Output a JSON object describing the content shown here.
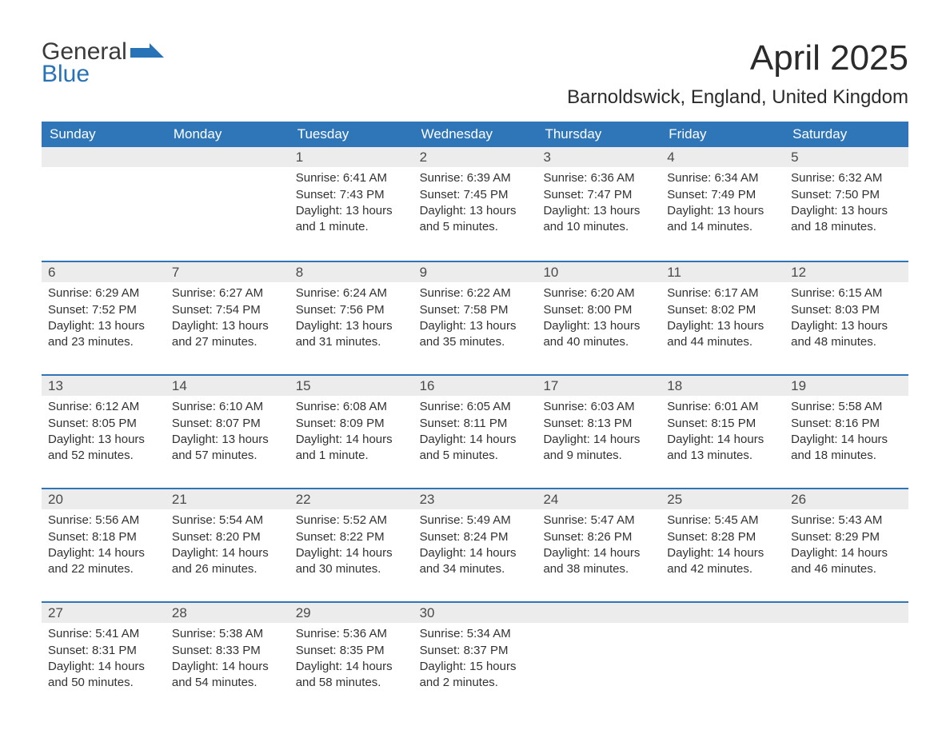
{
  "logo": {
    "word1": "General",
    "word2": "Blue"
  },
  "title": "April 2025",
  "location": "Barnoldswick, England, United Kingdom",
  "colors": {
    "header_bg": "#2f76b9",
    "header_text": "#ffffff",
    "daynum_bg": "#ececec",
    "text": "#323232",
    "rule": "#2f76b9",
    "logo_blue": "#2872b8"
  },
  "typography": {
    "title_fontsize": 44,
    "location_fontsize": 24,
    "header_fontsize": 17,
    "daynum_fontsize": 17,
    "body_fontsize": 15
  },
  "layout": {
    "columns": 7,
    "rows": 5,
    "aspect": "1188x918"
  },
  "day_headers": [
    "Sunday",
    "Monday",
    "Tuesday",
    "Wednesday",
    "Thursday",
    "Friday",
    "Saturday"
  ],
  "weeks": [
    [
      null,
      null,
      {
        "n": "1",
        "sunrise": "Sunrise: 6:41 AM",
        "sunset": "Sunset: 7:43 PM",
        "daylight": "Daylight: 13 hours and 1 minute."
      },
      {
        "n": "2",
        "sunrise": "Sunrise: 6:39 AM",
        "sunset": "Sunset: 7:45 PM",
        "daylight": "Daylight: 13 hours and 5 minutes."
      },
      {
        "n": "3",
        "sunrise": "Sunrise: 6:36 AM",
        "sunset": "Sunset: 7:47 PM",
        "daylight": "Daylight: 13 hours and 10 minutes."
      },
      {
        "n": "4",
        "sunrise": "Sunrise: 6:34 AM",
        "sunset": "Sunset: 7:49 PM",
        "daylight": "Daylight: 13 hours and 14 minutes."
      },
      {
        "n": "5",
        "sunrise": "Sunrise: 6:32 AM",
        "sunset": "Sunset: 7:50 PM",
        "daylight": "Daylight: 13 hours and 18 minutes."
      }
    ],
    [
      {
        "n": "6",
        "sunrise": "Sunrise: 6:29 AM",
        "sunset": "Sunset: 7:52 PM",
        "daylight": "Daylight: 13 hours and 23 minutes."
      },
      {
        "n": "7",
        "sunrise": "Sunrise: 6:27 AM",
        "sunset": "Sunset: 7:54 PM",
        "daylight": "Daylight: 13 hours and 27 minutes."
      },
      {
        "n": "8",
        "sunrise": "Sunrise: 6:24 AM",
        "sunset": "Sunset: 7:56 PM",
        "daylight": "Daylight: 13 hours and 31 minutes."
      },
      {
        "n": "9",
        "sunrise": "Sunrise: 6:22 AM",
        "sunset": "Sunset: 7:58 PM",
        "daylight": "Daylight: 13 hours and 35 minutes."
      },
      {
        "n": "10",
        "sunrise": "Sunrise: 6:20 AM",
        "sunset": "Sunset: 8:00 PM",
        "daylight": "Daylight: 13 hours and 40 minutes."
      },
      {
        "n": "11",
        "sunrise": "Sunrise: 6:17 AM",
        "sunset": "Sunset: 8:02 PM",
        "daylight": "Daylight: 13 hours and 44 minutes."
      },
      {
        "n": "12",
        "sunrise": "Sunrise: 6:15 AM",
        "sunset": "Sunset: 8:03 PM",
        "daylight": "Daylight: 13 hours and 48 minutes."
      }
    ],
    [
      {
        "n": "13",
        "sunrise": "Sunrise: 6:12 AM",
        "sunset": "Sunset: 8:05 PM",
        "daylight": "Daylight: 13 hours and 52 minutes."
      },
      {
        "n": "14",
        "sunrise": "Sunrise: 6:10 AM",
        "sunset": "Sunset: 8:07 PM",
        "daylight": "Daylight: 13 hours and 57 minutes."
      },
      {
        "n": "15",
        "sunrise": "Sunrise: 6:08 AM",
        "sunset": "Sunset: 8:09 PM",
        "daylight": "Daylight: 14 hours and 1 minute."
      },
      {
        "n": "16",
        "sunrise": "Sunrise: 6:05 AM",
        "sunset": "Sunset: 8:11 PM",
        "daylight": "Daylight: 14 hours and 5 minutes."
      },
      {
        "n": "17",
        "sunrise": "Sunrise: 6:03 AM",
        "sunset": "Sunset: 8:13 PM",
        "daylight": "Daylight: 14 hours and 9 minutes."
      },
      {
        "n": "18",
        "sunrise": "Sunrise: 6:01 AM",
        "sunset": "Sunset: 8:15 PM",
        "daylight": "Daylight: 14 hours and 13 minutes."
      },
      {
        "n": "19",
        "sunrise": "Sunrise: 5:58 AM",
        "sunset": "Sunset: 8:16 PM",
        "daylight": "Daylight: 14 hours and 18 minutes."
      }
    ],
    [
      {
        "n": "20",
        "sunrise": "Sunrise: 5:56 AM",
        "sunset": "Sunset: 8:18 PM",
        "daylight": "Daylight: 14 hours and 22 minutes."
      },
      {
        "n": "21",
        "sunrise": "Sunrise: 5:54 AM",
        "sunset": "Sunset: 8:20 PM",
        "daylight": "Daylight: 14 hours and 26 minutes."
      },
      {
        "n": "22",
        "sunrise": "Sunrise: 5:52 AM",
        "sunset": "Sunset: 8:22 PM",
        "daylight": "Daylight: 14 hours and 30 minutes."
      },
      {
        "n": "23",
        "sunrise": "Sunrise: 5:49 AM",
        "sunset": "Sunset: 8:24 PM",
        "daylight": "Daylight: 14 hours and 34 minutes."
      },
      {
        "n": "24",
        "sunrise": "Sunrise: 5:47 AM",
        "sunset": "Sunset: 8:26 PM",
        "daylight": "Daylight: 14 hours and 38 minutes."
      },
      {
        "n": "25",
        "sunrise": "Sunrise: 5:45 AM",
        "sunset": "Sunset: 8:28 PM",
        "daylight": "Daylight: 14 hours and 42 minutes."
      },
      {
        "n": "26",
        "sunrise": "Sunrise: 5:43 AM",
        "sunset": "Sunset: 8:29 PM",
        "daylight": "Daylight: 14 hours and 46 minutes."
      }
    ],
    [
      {
        "n": "27",
        "sunrise": "Sunrise: 5:41 AM",
        "sunset": "Sunset: 8:31 PM",
        "daylight": "Daylight: 14 hours and 50 minutes."
      },
      {
        "n": "28",
        "sunrise": "Sunrise: 5:38 AM",
        "sunset": "Sunset: 8:33 PM",
        "daylight": "Daylight: 14 hours and 54 minutes."
      },
      {
        "n": "29",
        "sunrise": "Sunrise: 5:36 AM",
        "sunset": "Sunset: 8:35 PM",
        "daylight": "Daylight: 14 hours and 58 minutes."
      },
      {
        "n": "30",
        "sunrise": "Sunrise: 5:34 AM",
        "sunset": "Sunset: 8:37 PM",
        "daylight": "Daylight: 15 hours and 2 minutes."
      },
      null,
      null,
      null
    ]
  ]
}
